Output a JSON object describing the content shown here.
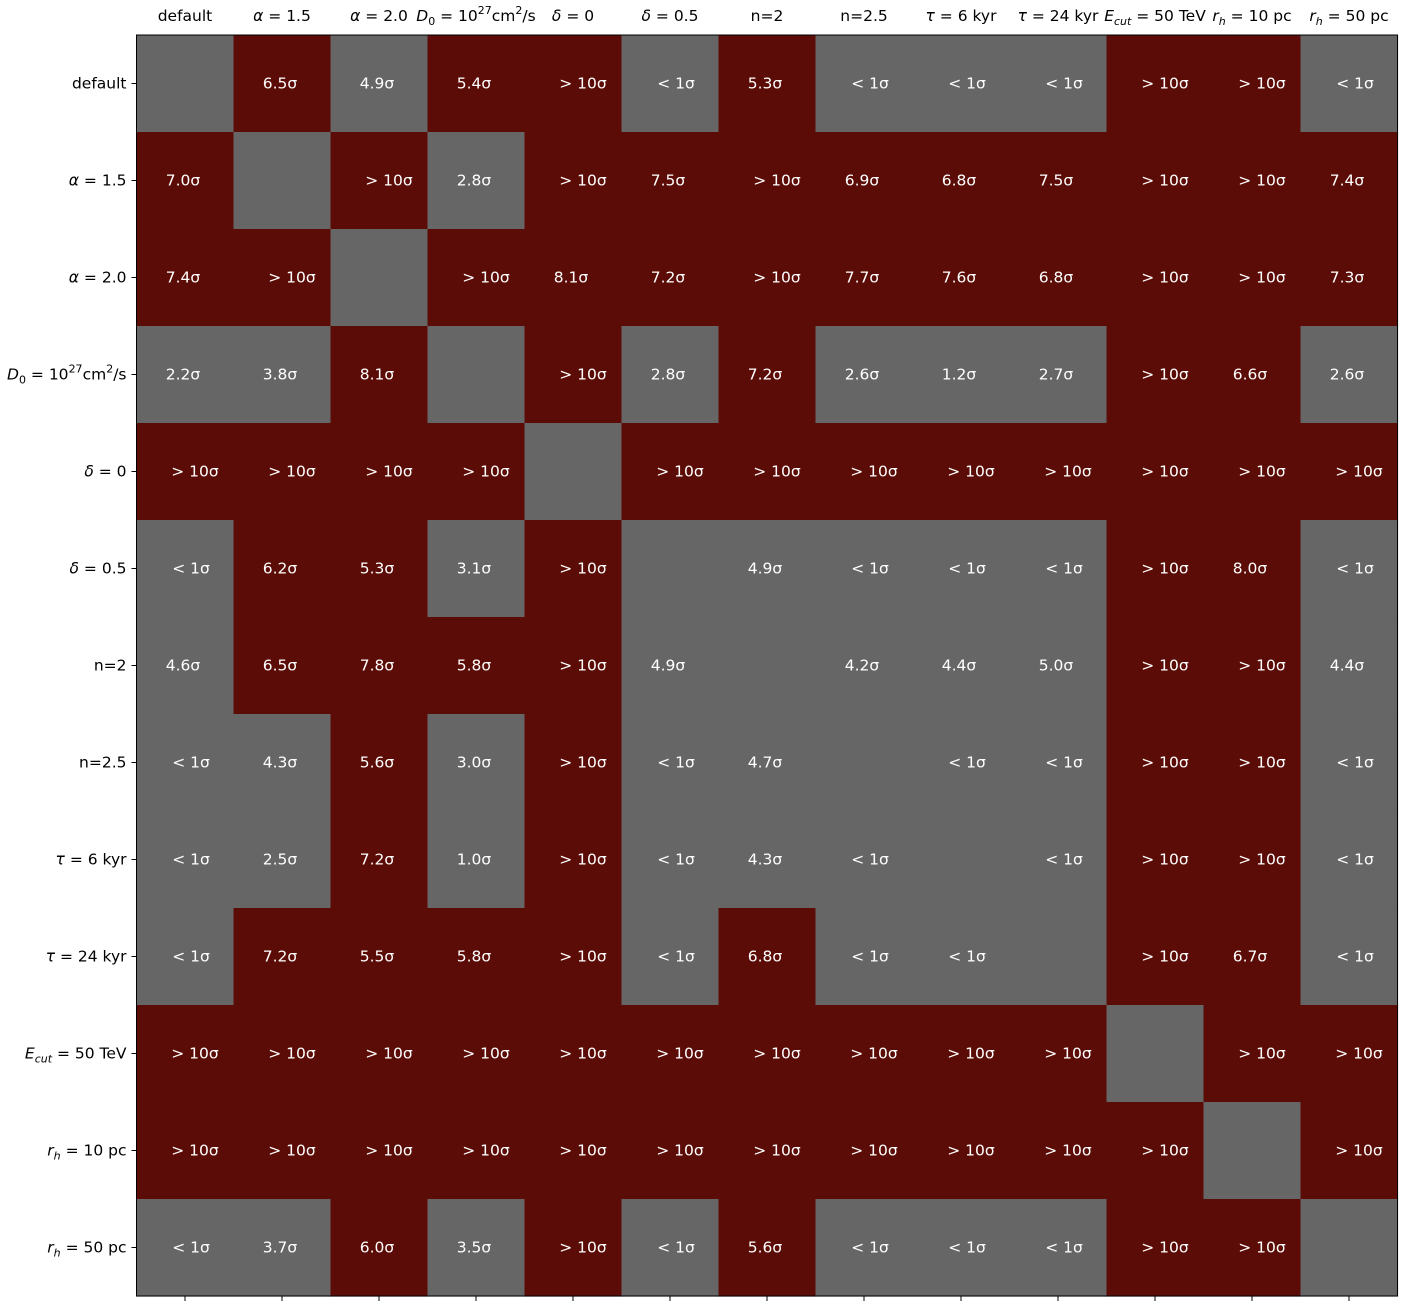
{
  "chart_data": {
    "type": "heatmap",
    "title": "",
    "xlabel": "",
    "ylabel": "",
    "x_tick_position": "top",
    "grid": false,
    "legend": "none",
    "colors": {
      "significant": "#5c0c06",
      "not_significant": "#666666",
      "diagonal": "#666666",
      "cell_text": "#ffffff",
      "tick_text": "#000000"
    },
    "categories": [
      "default",
      "α = 1.5",
      "α = 2.0",
      "D₀ = 10²⁷cm²/s",
      "δ = 0",
      "δ = 0.5",
      "n=2",
      "n=2.5",
      "τ = 6 kyr",
      "τ = 24 kyr",
      "E_cut = 50 TeV",
      "r_h = 10 pc",
      "r_h = 50 pc"
    ],
    "x_labels": [
      {
        "kind": "plain",
        "text": "default"
      },
      {
        "kind": "greek",
        "sym": "α",
        "rest": " = 1.5"
      },
      {
        "kind": "greek",
        "sym": "α",
        "rest": " = 2.0"
      },
      {
        "kind": "diff",
        "base": "D",
        "sub": "0",
        "mid": " = 10",
        "sup1": "27",
        "unit": "cm",
        "sup2": "2",
        "tail": "/s"
      },
      {
        "kind": "greek",
        "sym": "δ",
        "rest": " = 0"
      },
      {
        "kind": "greek",
        "sym": "δ",
        "rest": " = 0.5"
      },
      {
        "kind": "plain",
        "text": "n=2"
      },
      {
        "kind": "plain",
        "text": "n=2.5"
      },
      {
        "kind": "greek",
        "sym": "τ",
        "rest": " = 6 kyr"
      },
      {
        "kind": "greek",
        "sym": "τ",
        "rest": " = 24 kyr"
      },
      {
        "kind": "subscript",
        "base": "E",
        "sub": "cut",
        "rest": " = 50 TeV"
      },
      {
        "kind": "subscript",
        "base": "r",
        "sub": "h",
        "rest": " = 10 pc"
      },
      {
        "kind": "subscript",
        "base": "r",
        "sub": "h",
        "rest": " = 50 pc"
      }
    ],
    "cells": [
      [
        "",
        "6.5σ",
        "4.9σ",
        "5.4σ",
        "> 10σ",
        "< 1σ",
        "5.3σ",
        "< 1σ",
        "< 1σ",
        "< 1σ",
        "> 10σ",
        "> 10σ",
        "< 1σ"
      ],
      [
        "7.0σ",
        "",
        "> 10σ",
        "2.8σ",
        "> 10σ",
        "7.5σ",
        "> 10σ",
        "6.9σ",
        "6.8σ",
        "7.5σ",
        "> 10σ",
        "> 10σ",
        "7.4σ"
      ],
      [
        "7.4σ",
        "> 10σ",
        "",
        "> 10σ",
        "8.1σ",
        "7.2σ",
        "> 10σ",
        "7.7σ",
        "7.6σ",
        "6.8σ",
        "> 10σ",
        "> 10σ",
        "7.3σ"
      ],
      [
        "2.2σ",
        "3.8σ",
        "8.1σ",
        "",
        "> 10σ",
        "2.8σ",
        "7.2σ",
        "2.6σ",
        "1.2σ",
        "2.7σ",
        "> 10σ",
        "6.6σ",
        "2.6σ"
      ],
      [
        "> 10σ",
        "> 10σ",
        "> 10σ",
        "> 10σ",
        "",
        "> 10σ",
        "> 10σ",
        "> 10σ",
        "> 10σ",
        "> 10σ",
        "> 10σ",
        "> 10σ",
        "> 10σ"
      ],
      [
        "< 1σ",
        "6.2σ",
        "5.3σ",
        "3.1σ",
        "> 10σ",
        "",
        "4.9σ",
        "< 1σ",
        "< 1σ",
        "< 1σ",
        "> 10σ",
        "8.0σ",
        "< 1σ"
      ],
      [
        "4.6σ",
        "6.5σ",
        "7.8σ",
        "5.8σ",
        "> 10σ",
        "4.9σ",
        "",
        "4.2σ",
        "4.4σ",
        "5.0σ",
        "> 10σ",
        "> 10σ",
        "4.4σ"
      ],
      [
        "< 1σ",
        "4.3σ",
        "5.6σ",
        "3.0σ",
        "> 10σ",
        "< 1σ",
        "4.7σ",
        "",
        "< 1σ",
        "< 1σ",
        "> 10σ",
        "> 10σ",
        "< 1σ"
      ],
      [
        "< 1σ",
        "2.5σ",
        "7.2σ",
        "1.0σ",
        "> 10σ",
        "< 1σ",
        "4.3σ",
        "< 1σ",
        "",
        "< 1σ",
        "> 10σ",
        "> 10σ",
        "< 1σ"
      ],
      [
        "< 1σ",
        "7.2σ",
        "5.5σ",
        "5.8σ",
        "> 10σ",
        "< 1σ",
        "6.8σ",
        "< 1σ",
        "< 1σ",
        "",
        "> 10σ",
        "6.7σ",
        "< 1σ"
      ],
      [
        "> 10σ",
        "> 10σ",
        "> 10σ",
        "> 10σ",
        "> 10σ",
        "> 10σ",
        "> 10σ",
        "> 10σ",
        "> 10σ",
        "> 10σ",
        "",
        "> 10σ",
        "> 10σ"
      ],
      [
        "> 10σ",
        "> 10σ",
        "> 10σ",
        "> 10σ",
        "> 10σ",
        "> 10σ",
        "> 10σ",
        "> 10σ",
        "> 10σ",
        "> 10σ",
        "> 10σ",
        "",
        "> 10σ"
      ],
      [
        "< 1σ",
        "3.7σ",
        "6.0σ",
        "3.5σ",
        "> 10σ",
        "< 1σ",
        "5.6σ",
        "< 1σ",
        "< 1σ",
        "< 1σ",
        "> 10σ",
        "> 10σ",
        ""
      ]
    ],
    "shade": [
      [
        0,
        1,
        0,
        1,
        1,
        0,
        1,
        0,
        0,
        0,
        1,
        1,
        0
      ],
      [
        1,
        0,
        1,
        0,
        1,
        1,
        1,
        1,
        1,
        1,
        1,
        1,
        1
      ],
      [
        1,
        1,
        0,
        1,
        1,
        1,
        1,
        1,
        1,
        1,
        1,
        1,
        1
      ],
      [
        0,
        0,
        1,
        0,
        1,
        0,
        1,
        0,
        0,
        0,
        1,
        1,
        0
      ],
      [
        1,
        1,
        1,
        1,
        0,
        1,
        1,
        1,
        1,
        1,
        1,
        1,
        1
      ],
      [
        0,
        1,
        1,
        0,
        1,
        0,
        0,
        0,
        0,
        0,
        1,
        1,
        0
      ],
      [
        0,
        1,
        1,
        1,
        1,
        0,
        0,
        0,
        0,
        0,
        1,
        1,
        0
      ],
      [
        0,
        0,
        1,
        0,
        1,
        0,
        0,
        0,
        0,
        0,
        1,
        1,
        0
      ],
      [
        0,
        0,
        1,
        0,
        1,
        0,
        0,
        0,
        0,
        0,
        1,
        1,
        0
      ],
      [
        0,
        1,
        1,
        1,
        1,
        0,
        1,
        0,
        0,
        0,
        1,
        1,
        0
      ],
      [
        1,
        1,
        1,
        1,
        1,
        1,
        1,
        1,
        1,
        1,
        0,
        1,
        1
      ],
      [
        1,
        1,
        1,
        1,
        1,
        1,
        1,
        1,
        1,
        1,
        1,
        0,
        1
      ],
      [
        0,
        0,
        1,
        0,
        1,
        0,
        1,
        0,
        0,
        0,
        1,
        1,
        0
      ]
    ]
  }
}
